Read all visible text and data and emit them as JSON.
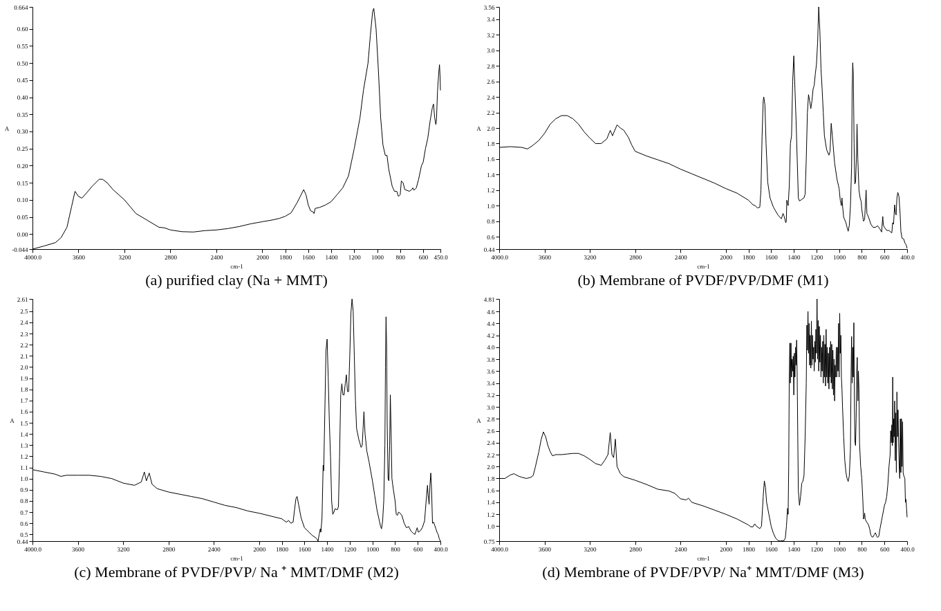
{
  "chart_data": [
    {
      "type": "line",
      "title": "(a) purified clay (Na + MMT)",
      "xlabel": "cm-1",
      "ylabel": "A",
      "xlim": [
        4000,
        450
      ],
      "ylim": [
        -0.044,
        0.664
      ],
      "xticks": [
        {
          "value": 4000,
          "label": "4000.0"
        },
        3600,
        3200,
        2800,
        2400,
        2000,
        1800,
        1600,
        1400,
        1200,
        1000,
        800,
        600,
        {
          "value": 450,
          "label": "450.0"
        }
      ],
      "yticks": [
        -0.044,
        {
          "value": 0,
          "label": "0.00"
        },
        0.05,
        {
          "value": 0.1,
          "label": "0.10"
        },
        0.15,
        {
          "value": 0.2,
          "label": "0.20"
        },
        0.25,
        {
          "value": 0.3,
          "label": "0.30"
        },
        0.35,
        {
          "value": 0.4,
          "label": "0.40"
        },
        0.45,
        {
          "value": 0.5,
          "label": "0.50"
        },
        0.55,
        {
          "value": 0.6,
          "label": "0.60"
        },
        0.664
      ],
      "series": [
        {
          "color": "#000000",
          "x": [
            4000,
            3900,
            3800,
            3750,
            3700,
            3660,
            3630,
            3600,
            3570,
            3530,
            3480,
            3420,
            3390,
            3350,
            3300,
            3200,
            3100,
            3000,
            2900,
            2850,
            2800,
            2700,
            2600,
            2500,
            2400,
            2300,
            2200,
            2100,
            2000,
            1900,
            1850,
            1800,
            1750,
            1700,
            1670,
            1640,
            1620,
            1600,
            1580,
            1560,
            1550,
            1540,
            1500,
            1450,
            1400,
            1350,
            1300,
            1250,
            1200,
            1150,
            1120,
            1080,
            1060,
            1040,
            1030,
            1010,
            990,
            970,
            950,
            930,
            915,
            900,
            870,
            850,
            830,
            815,
            800,
            790,
            775,
            760,
            720,
            700,
            690,
            680,
            660,
            640,
            615,
            600,
            580,
            560,
            540,
            520,
            510,
            500,
            490,
            485,
            475,
            465,
            458,
            453,
            450
          ],
          "values": [
            -0.044,
            -0.035,
            -0.025,
            -0.01,
            0.02,
            0.08,
            0.125,
            0.11,
            0.105,
            0.12,
            0.14,
            0.16,
            0.16,
            0.15,
            0.13,
            0.1,
            0.06,
            0.04,
            0.02,
            0.018,
            0.012,
            0.007,
            0.006,
            0.01,
            0.012,
            0.016,
            0.022,
            0.03,
            0.036,
            0.042,
            0.046,
            0.052,
            0.062,
            0.09,
            0.11,
            0.13,
            0.115,
            0.085,
            0.068,
            0.065,
            0.06,
            0.075,
            0.078,
            0.085,
            0.095,
            0.115,
            0.135,
            0.17,
            0.25,
            0.34,
            0.42,
            0.5,
            0.58,
            0.65,
            0.66,
            0.6,
            0.48,
            0.34,
            0.26,
            0.23,
            0.23,
            0.19,
            0.14,
            0.125,
            0.125,
            0.11,
            0.115,
            0.155,
            0.15,
            0.13,
            0.125,
            0.13,
            0.135,
            0.128,
            0.135,
            0.16,
            0.2,
            0.21,
            0.25,
            0.28,
            0.33,
            0.37,
            0.38,
            0.34,
            0.32,
            0.33,
            0.42,
            0.47,
            0.495,
            0.46,
            0.42
          ]
        }
      ]
    },
    {
      "type": "line",
      "title": "(b) Membrane of PVDF/PVP/DMF (M1)",
      "xlabel": "cm-1",
      "ylabel": "A",
      "xlim": [
        4000,
        400
      ],
      "ylim": [
        0.44,
        3.56
      ],
      "xticks": [
        {
          "value": 4000,
          "label": "4000.0"
        },
        3600,
        3200,
        2800,
        2400,
        2000,
        1800,
        1600,
        1400,
        1200,
        1000,
        800,
        600,
        {
          "value": 400,
          "label": "400.0"
        }
      ],
      "yticks": [
        0.44,
        0.6,
        0.8,
        {
          "value": 1,
          "label": "1.0"
        },
        1.2,
        1.4,
        1.6,
        1.8,
        {
          "value": 2,
          "label": "2.0"
        },
        2.2,
        2.4,
        2.6,
        2.8,
        {
          "value": 3,
          "label": "3.0"
        },
        3.2,
        3.4,
        3.56
      ],
      "series": [
        {
          "color": "#000000",
          "x": [
            4000,
            3900,
            3800,
            3750,
            3700,
            3650,
            3600,
            3550,
            3500,
            3450,
            3400,
            3350,
            3300,
            3250,
            3200,
            3150,
            3100,
            3050,
            3020,
            3000,
            2960,
            2930,
            2900,
            2860,
            2830,
            2800,
            2700,
            2600,
            2500,
            2400,
            2300,
            2200,
            2100,
            2000,
            1900,
            1800,
            1760,
            1740,
            1720,
            1700,
            1690,
            1680,
            1670,
            1665,
            1655,
            1645,
            1630,
            1610,
            1580,
            1540,
            1510,
            1495,
            1485,
            1471,
            1466,
            1462,
            1450,
            1440,
            1430,
            1420,
            1410,
            1400,
            1390,
            1380,
            1370,
            1360,
            1350,
            1330,
            1310,
            1300,
            1290,
            1280,
            1270,
            1260,
            1250,
            1240,
            1230,
            1220,
            1210,
            1200,
            1190,
            1180,
            1170,
            1160,
            1150,
            1140,
            1130,
            1110,
            1090,
            1080,
            1070,
            1060,
            1040,
            1020,
            1000,
            990,
            980,
            975,
            970,
            960,
            940,
            930,
            920,
            910,
            900,
            890,
            885,
            880,
            875,
            868,
            862,
            855,
            848,
            842,
            835,
            825,
            815,
            805,
            800,
            790,
            785,
            775,
            762,
            755,
            740,
            720,
            700,
            680,
            660,
            640,
            625,
            615,
            610,
            600,
            580,
            560,
            545,
            535,
            528,
            520,
            510,
            503,
            497,
            490,
            482,
            472,
            462,
            455,
            445,
            430,
            420,
            410,
            400
          ],
          "values": [
            1.75,
            1.76,
            1.75,
            1.73,
            1.78,
            1.84,
            1.93,
            2.05,
            2.12,
            2.16,
            2.16,
            2.12,
            2.05,
            1.95,
            1.87,
            1.8,
            1.8,
            1.86,
            1.97,
            1.9,
            2.04,
            2.0,
            1.97,
            1.88,
            1.78,
            1.7,
            1.64,
            1.59,
            1.54,
            1.47,
            1.41,
            1.35,
            1.29,
            1.22,
            1.16,
            1.07,
            1.01,
            1.0,
            0.97,
            0.98,
            1.2,
            1.9,
            2.35,
            2.4,
            2.3,
            1.8,
            1.3,
            1.1,
            0.98,
            0.88,
            0.83,
            0.9,
            0.86,
            0.78,
            0.8,
            1.07,
            1.0,
            1.25,
            1.8,
            1.9,
            2.6,
            2.93,
            2.5,
            2.1,
            1.6,
            1.1,
            1.06,
            1.08,
            1.1,
            1.15,
            1.6,
            2.2,
            2.43,
            2.35,
            2.25,
            2.35,
            2.5,
            2.55,
            2.7,
            2.82,
            3.1,
            3.56,
            3.25,
            2.76,
            2.5,
            2.2,
            1.9,
            1.72,
            1.65,
            1.7,
            2.06,
            1.9,
            1.55,
            1.35,
            1.22,
            1.07,
            1.0,
            1.1,
            1.0,
            0.85,
            0.78,
            0.72,
            0.67,
            0.75,
            1.0,
            1.5,
            2.5,
            2.84,
            2.7,
            1.8,
            1.28,
            1.3,
            1.6,
            2.05,
            1.6,
            1.2,
            1.1,
            1.05,
            0.95,
            0.85,
            0.8,
            0.82,
            1.2,
            0.9,
            0.85,
            0.76,
            0.72,
            0.72,
            0.74,
            0.7,
            0.66,
            0.86,
            0.75,
            0.72,
            0.68,
            0.68,
            0.66,
            0.65,
            0.78,
            0.76,
            1.01,
            0.9,
            0.88,
            1.1,
            1.17,
            1.12,
            0.9,
            0.67,
            0.58,
            0.57,
            0.52,
            0.5,
            0.45
          ]
        }
      ]
    },
    {
      "type": "line",
      "title": "(c) Membrane of PVDF/PVP/ Na ⁺ MMT/DMF (M2)",
      "xlabel": "cm-1",
      "ylabel": "A",
      "xlim": [
        4000,
        400
      ],
      "ylim": [
        0.44,
        2.61
      ],
      "xticks": [
        {
          "value": 4000,
          "label": "4000.0"
        },
        3600,
        3200,
        2800,
        2400,
        2000,
        1800,
        1600,
        1400,
        1200,
        1000,
        800,
        600,
        {
          "value": 400,
          "label": "400.0"
        }
      ],
      "yticks": [
        0.44,
        0.5,
        0.6,
        0.7,
        0.8,
        0.9,
        {
          "value": 1,
          "label": "1.0"
        },
        1.1,
        1.2,
        1.3,
        1.4,
        1.5,
        1.6,
        1.7,
        1.8,
        1.9,
        {
          "value": 2,
          "label": "2.0"
        },
        2.1,
        2.2,
        2.3,
        2.4,
        2.5,
        2.61
      ],
      "series": [
        {
          "color": "#000000",
          "x": [
            4000,
            3900,
            3800,
            3750,
            3700,
            3600,
            3500,
            3400,
            3300,
            3200,
            3100,
            3040,
            3013,
            2995,
            2970,
            2945,
            2900,
            2800,
            2700,
            2600,
            2500,
            2400,
            2300,
            2200,
            2100,
            2000,
            1900,
            1800,
            1760,
            1740,
            1720,
            1700,
            1690,
            1675,
            1665,
            1650,
            1630,
            1600,
            1560,
            1530,
            1500,
            1490,
            1480,
            1470,
            1460,
            1455,
            1445,
            1435,
            1430,
            1420,
            1410,
            1400,
            1390,
            1380,
            1370,
            1360,
            1350,
            1340,
            1330,
            1310,
            1300,
            1290,
            1280,
            1270,
            1260,
            1250,
            1240,
            1230,
            1220,
            1210,
            1200,
            1190,
            1180,
            1170,
            1160,
            1150,
            1140,
            1120,
            1100,
            1090,
            1080,
            1075,
            1065,
            1050,
            1030,
            1000,
            980,
            960,
            945,
            930,
            920,
            910,
            900,
            890,
            885,
            880,
            875,
            870,
            862,
            855,
            848,
            842,
            835,
            828,
            815,
            800,
            790,
            780,
            770,
            755,
            740,
            720,
            700,
            680,
            660,
            640,
            625,
            615,
            605,
            595,
            580,
            560,
            540,
            530,
            522,
            514,
            508,
            500,
            492,
            485,
            478,
            470,
            460,
            450,
            440,
            430,
            420,
            410,
            400
          ],
          "values": [
            1.08,
            1.06,
            1.04,
            1.02,
            1.03,
            1.03,
            1.03,
            1.02,
            1.0,
            0.96,
            0.94,
            0.97,
            1.06,
            0.98,
            1.05,
            0.95,
            0.91,
            0.88,
            0.86,
            0.84,
            0.82,
            0.79,
            0.76,
            0.74,
            0.71,
            0.69,
            0.665,
            0.64,
            0.61,
            0.625,
            0.6,
            0.61,
            0.7,
            0.82,
            0.84,
            0.76,
            0.65,
            0.56,
            0.52,
            0.49,
            0.47,
            0.46,
            0.44,
            0.5,
            0.55,
            0.52,
            0.65,
            1.12,
            1.07,
            1.6,
            2.15,
            2.25,
            1.9,
            1.5,
            1.2,
            0.8,
            0.68,
            0.7,
            0.73,
            0.72,
            0.75,
            1.2,
            1.75,
            1.85,
            1.75,
            1.75,
            1.85,
            1.93,
            1.78,
            1.78,
            2.1,
            2.48,
            2.61,
            2.5,
            2.1,
            1.7,
            1.45,
            1.35,
            1.28,
            1.3,
            1.5,
            1.6,
            1.4,
            1.25,
            1.15,
            0.98,
            0.85,
            0.72,
            0.65,
            0.58,
            0.55,
            0.62,
            0.8,
            1.3,
            2.0,
            2.45,
            2.2,
            1.5,
            1.0,
            0.98,
            1.3,
            1.75,
            1.4,
            1.0,
            0.9,
            0.8,
            0.68,
            0.67,
            0.7,
            0.69,
            0.67,
            0.6,
            0.56,
            0.57,
            0.53,
            0.51,
            0.5,
            0.53,
            0.56,
            0.52,
            0.53,
            0.56,
            0.62,
            0.75,
            0.85,
            0.94,
            0.85,
            0.77,
            0.95,
            1.05,
            0.9,
            0.6,
            0.61,
            0.58,
            0.55,
            0.52,
            0.5,
            0.46,
            0.44
          ]
        }
      ]
    },
    {
      "type": "line",
      "title": "(d) Membrane of PVDF/PVP/ Na⁺ MMT/DMF (M3)",
      "xlabel": "cm-1",
      "ylabel": "A",
      "xlim": [
        4000,
        400
      ],
      "ylim": [
        0.75,
        4.81
      ],
      "xticks": [
        {
          "value": 4000,
          "label": "4000.0"
        },
        3600,
        3200,
        2800,
        2400,
        2000,
        1800,
        1600,
        1400,
        1200,
        1000,
        800,
        600,
        {
          "value": 400,
          "label": "400.0"
        }
      ],
      "yticks": [
        0.75,
        {
          "value": 1,
          "label": "1.0"
        },
        1.2,
        1.4,
        1.6,
        1.8,
        {
          "value": 2,
          "label": "2.0"
        },
        2.2,
        2.4,
        2.6,
        2.8,
        {
          "value": 3,
          "label": "3.0"
        },
        3.2,
        3.4,
        3.6,
        3.8,
        {
          "value": 4,
          "label": "4.0"
        },
        4.2,
        4.4,
        4.6,
        4.81
      ],
      "series": [
        {
          "color": "#000000",
          "x": [
            4000,
            3950,
            3900,
            3870,
            3830,
            3800,
            3760,
            3720,
            3700,
            3680,
            3650,
            3630,
            3610,
            3590,
            3570,
            3550,
            3530,
            3500,
            3450,
            3400,
            3350,
            3300,
            3250,
            3200,
            3150,
            3100,
            3070,
            3040,
            3020,
            3005,
            2990,
            2975,
            2960,
            2930,
            2900,
            2800,
            2700,
            2600,
            2500,
            2450,
            2400,
            2350,
            2330,
            2300,
            2200,
            2100,
            2000,
            1900,
            1800,
            1780,
            1760,
            1745,
            1730,
            1700,
            1685,
            1670,
            1660,
            1650,
            1640,
            1620,
            1600,
            1580,
            1560,
            1540,
            1520,
            1500,
            1490,
            1475,
            1465,
            1455,
            1450,
            1445,
            1440,
            1435,
            1430,
            1425,
            1420,
            1415,
            1410,
            1405,
            1400,
            1395,
            1390,
            1385,
            1380,
            1375,
            1370,
            1365,
            1360,
            1350,
            1340,
            1330,
            1320,
            1310,
            1300,
            1290,
            1285,
            1280,
            1275,
            1270,
            1265,
            1260,
            1255,
            1250,
            1245,
            1240,
            1235,
            1230,
            1225,
            1220,
            1215,
            1210,
            1205,
            1200,
            1195,
            1190,
            1185,
            1180,
            1175,
            1170,
            1165,
            1160,
            1155,
            1150,
            1145,
            1140,
            1135,
            1130,
            1125,
            1120,
            1115,
            1110,
            1105,
            1100,
            1095,
            1090,
            1085,
            1080,
            1075,
            1070,
            1065,
            1060,
            1055,
            1050,
            1045,
            1040,
            1035,
            1030,
            1025,
            1020,
            1015,
            1010,
            1005,
            1000,
            995,
            990,
            985,
            980,
            975,
            970,
            960,
            950,
            940,
            930,
            920,
            910,
            900,
            895,
            890,
            885,
            880,
            875,
            870,
            865,
            860,
            855,
            850,
            845,
            840,
            835,
            830,
            825,
            820,
            810,
            800,
            790,
            785,
            780,
            775,
            770,
            760,
            740,
            730,
            720,
            710,
            700,
            690,
            680,
            670,
            660,
            650,
            640,
            620,
            600,
            590,
            580,
            570,
            560,
            550,
            545,
            540,
            535,
            530,
            527,
            523,
            518,
            515,
            510,
            505,
            500,
            495,
            490,
            485,
            480,
            475,
            470,
            465,
            460,
            455,
            450,
            445,
            440,
            435,
            430,
            420,
            415,
            410,
            405,
            400
          ],
          "values": [
            1.8,
            1.8,
            1.86,
            1.88,
            1.84,
            1.82,
            1.8,
            1.82,
            1.85,
            2.0,
            2.25,
            2.45,
            2.58,
            2.5,
            2.35,
            2.25,
            2.18,
            2.2,
            2.2,
            2.21,
            2.22,
            2.22,
            2.18,
            2.12,
            2.05,
            2.02,
            2.1,
            2.2,
            2.57,
            2.2,
            2.15,
            2.46,
            2.0,
            1.88,
            1.83,
            1.77,
            1.7,
            1.62,
            1.59,
            1.55,
            1.46,
            1.44,
            1.47,
            1.4,
            1.34,
            1.27,
            1.2,
            1.12,
            1.02,
            0.99,
            0.99,
            1.04,
            1.0,
            0.96,
            1.0,
            1.5,
            1.76,
            1.65,
            1.4,
            1.2,
            1.0,
            0.88,
            0.8,
            0.76,
            0.75,
            0.76,
            0.75,
            0.8,
            1.0,
            1.3,
            1.2,
            2.0,
            3.5,
            4.07,
            3.4,
            4.07,
            3.5,
            3.8,
            3.6,
            3.85,
            3.2,
            3.9,
            3.5,
            4.0,
            3.7,
            4.12,
            3.5,
            2.5,
            1.6,
            1.35,
            1.5,
            1.72,
            1.75,
            1.85,
            2.5,
            3.4,
            4.37,
            3.95,
            4.6,
            3.9,
            4.4,
            3.7,
            4.2,
            3.65,
            4.44,
            3.7,
            4.2,
            3.8,
            4.0,
            3.6,
            4.1,
            3.75,
            4.3,
            3.9,
            4.81,
            3.8,
            4.45,
            3.6,
            4.35,
            3.75,
            4.2,
            3.5,
            4.0,
            3.6,
            4.1,
            3.4,
            4.2,
            3.5,
            4.05,
            3.35,
            4.3,
            3.5,
            4.0,
            3.4,
            3.9,
            3.3,
            4.0,
            3.5,
            4.1,
            3.4,
            4.05,
            3.3,
            3.95,
            3.2,
            3.8,
            3.1,
            3.7,
            3.5,
            4.0,
            3.5,
            4.0,
            3.6,
            4.4,
            3.5,
            4.57,
            3.9,
            4.2,
            3.5,
            3.3,
            3.0,
            2.5,
            2.1,
            1.9,
            1.8,
            1.75,
            1.85,
            2.3,
            3.5,
            4.18,
            3.4,
            4.0,
            3.5,
            4.41,
            3.0,
            2.4,
            2.35,
            2.8,
            3.6,
            3.83,
            3.1,
            3.6,
            3.3,
            2.4,
            2.0,
            1.8,
            1.4,
            1.12,
            1.15,
            1.22,
            1.12,
            1.08,
            1.02,
            0.95,
            0.85,
            0.82,
            0.82,
            0.86,
            0.89,
            0.84,
            0.81,
            0.83,
            0.95,
            1.15,
            1.35,
            1.4,
            1.5,
            1.7,
            2.0,
            2.2,
            2.6,
            2.4,
            2.7,
            2.35,
            3.5,
            2.4,
            2.8,
            2.5,
            3.1,
            2.1,
            2.9,
            1.9,
            3.25,
            2.5,
            2.95,
            2.4,
            2.0,
            1.8,
            2.8,
            1.9,
            2.8,
            2.0,
            2.75,
            1.9,
            1.85,
            1.8,
            1.4,
            1.45,
            1.3,
            1.15
          ]
        }
      ]
    }
  ]
}
